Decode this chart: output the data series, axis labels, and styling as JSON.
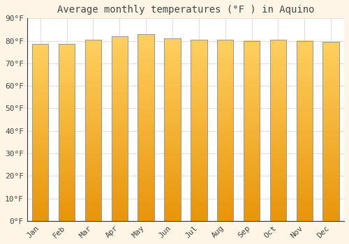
{
  "title": "Average monthly temperatures (°F ) in Aquino",
  "months": [
    "Jan",
    "Feb",
    "Mar",
    "Apr",
    "May",
    "Jun",
    "Jul",
    "Aug",
    "Sep",
    "Oct",
    "Nov",
    "Dec"
  ],
  "values": [
    78.5,
    78.5,
    80.5,
    82.0,
    83.0,
    81.0,
    80.5,
    80.5,
    80.0,
    80.5,
    80.0,
    79.5
  ],
  "bar_color": "#FFA500",
  "bar_edge_color": "#999999",
  "plot_bg_color": "#FFFFFF",
  "fig_bg_color": "#FFF5E6",
  "grid_color": "#E0E0E0",
  "text_color": "#444444",
  "ylim": [
    0,
    90
  ],
  "ytick_interval": 10,
  "title_fontsize": 10,
  "tick_fontsize": 8
}
